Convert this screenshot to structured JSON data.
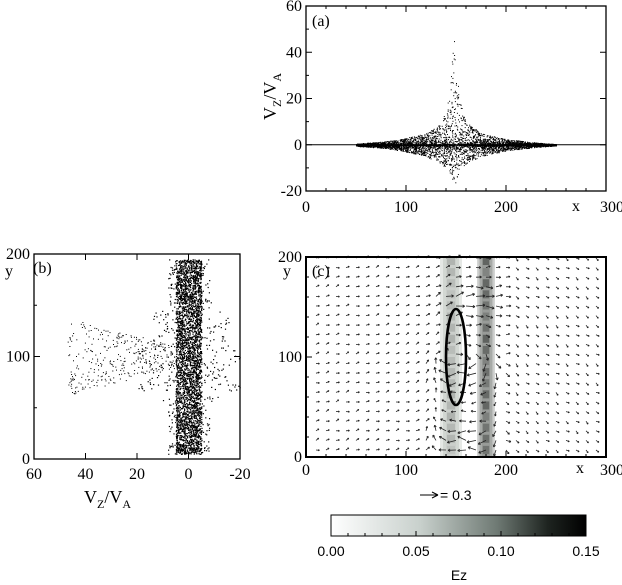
{
  "chart_data": [
    {
      "panel_label": "(a)",
      "type": "scatter",
      "xlabel": "x",
      "ylabel_main": "V",
      "ylabel_sub1": "Z",
      "ylabel_mid": "/V",
      "ylabel_sub2": "A",
      "xlim": [
        0,
        300
      ],
      "ylim": [
        -20,
        60
      ],
      "xticks": [
        "0",
        "100",
        "200",
        "300"
      ],
      "yticks": [
        "-20",
        "0",
        "20",
        "40",
        "60"
      ],
      "envelope": {
        "x": [
          50,
          80,
          100,
          120,
          135,
          143,
          148,
          153,
          160,
          175,
          200,
          230,
          250
        ],
        "upper": [
          0.5,
          1.5,
          3,
          5,
          9,
          20,
          48,
          20,
          10,
          5,
          2.5,
          1,
          0.3
        ],
        "lower": [
          -0.5,
          -1.5,
          -3,
          -5,
          -8,
          -12,
          -18,
          -12,
          -8,
          -5,
          -2.5,
          -1,
          -0.3
        ]
      }
    },
    {
      "panel_label": "(b)",
      "type": "scatter",
      "xlabel_main": "V",
      "xlabel_sub1": "Z",
      "xlabel_mid": "/V",
      "xlabel_sub2": "A",
      "ylabel": "y",
      "xlim": [
        60,
        -20
      ],
      "ylim": [
        0,
        200
      ],
      "xticks": [
        "60",
        "40",
        "20",
        "0",
        "-20"
      ],
      "yticks": [
        "0",
        "100",
        "200"
      ],
      "band": {
        "vz_min": -5,
        "vz_max": 5,
        "y_min": 5,
        "y_max": 195
      },
      "fan_max_vz": 47,
      "fan_center_y": 100
    },
    {
      "panel_label": "(c)",
      "type": "heatmap",
      "xlabel": "x",
      "ylabel": "y",
      "xlim": [
        0,
        300
      ],
      "ylim": [
        0,
        200
      ],
      "xticks": [
        "0",
        "100",
        "200",
        "300"
      ],
      "yticks": [
        "0",
        "100",
        "200"
      ],
      "ez_bands": [
        {
          "x": 145,
          "width": 10,
          "value": 0.06
        },
        {
          "x": 180,
          "width": 8,
          "value": 0.12
        }
      ],
      "ellipse": {
        "cx": 150,
        "cy": 100,
        "rx": 10,
        "ry": 48
      },
      "vector_scale_label": "= 0.3",
      "colorbar": {
        "label": "Ez",
        "min": 0.0,
        "max": 0.15,
        "ticks": [
          "0.00",
          "0.05",
          "0.10",
          "0.15"
        ]
      }
    }
  ]
}
